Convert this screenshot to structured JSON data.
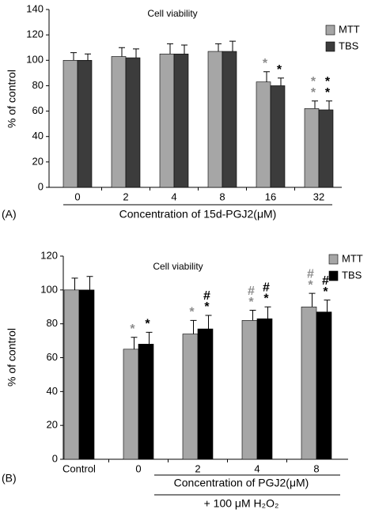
{
  "chart_data": [
    {
      "type": "bar",
      "panel_label": "(A)",
      "title": "Cell viability",
      "y_label": "% of control",
      "x_label": "Concentration of 15d-PGJ2(μM)",
      "categories": [
        "0",
        "2",
        "4",
        "8",
        "16",
        "32"
      ],
      "ylim": [
        0,
        140
      ],
      "yticks": [
        0,
        20,
        40,
        60,
        80,
        100,
        120,
        140
      ],
      "series": [
        {
          "name": "MTT",
          "color": "#a6a6a6",
          "marker_color": "#8c8c8c",
          "values": [
            100,
            103,
            105,
            107,
            83,
            62
          ],
          "error": [
            6,
            7,
            8,
            6,
            8,
            6
          ],
          "markers": [
            null,
            null,
            null,
            null,
            [
              "*"
            ],
            [
              "*",
              "*"
            ]
          ]
        },
        {
          "name": "TBS",
          "color": "#3c3c3c",
          "marker_color": "#000000",
          "values": [
            100,
            102,
            105,
            107,
            80,
            61
          ],
          "error": [
            5,
            7,
            7,
            8,
            6,
            7
          ],
          "markers": [
            null,
            null,
            null,
            null,
            [
              "*"
            ],
            [
              "*",
              "*"
            ]
          ]
        }
      ]
    },
    {
      "type": "bar",
      "panel_label": "(B)",
      "title": "Cell viability",
      "y_label": "% of control",
      "x_label": "Concentration of PGJ2(μM)",
      "x_sublabel": "+ 100  μM H₂O₂",
      "categories": [
        "Control",
        "0",
        "2",
        "4",
        "8"
      ],
      "ylim": [
        0,
        120
      ],
      "yticks": [
        0,
        20,
        40,
        60,
        80,
        100,
        120
      ],
      "series": [
        {
          "name": "MTT",
          "color": "#a6a6a6",
          "marker_color": "#8c8c8c",
          "values": [
            100,
            65,
            74,
            82,
            90
          ],
          "error": [
            7,
            7,
            8,
            6,
            8
          ],
          "markers": [
            null,
            [
              "*"
            ],
            [
              "*"
            ],
            [
              "#",
              "*"
            ],
            [
              "#",
              "*"
            ]
          ]
        },
        {
          "name": "TBS",
          "color": "#000000",
          "marker_color": "#000000",
          "values": [
            100,
            68,
            77,
            83,
            87
          ],
          "error": [
            8,
            7,
            8,
            7,
            7
          ],
          "markers": [
            null,
            [
              "*"
            ],
            [
              "#",
              "*"
            ],
            [
              "#",
              "*"
            ],
            [
              "#",
              "*"
            ]
          ]
        }
      ]
    }
  ]
}
